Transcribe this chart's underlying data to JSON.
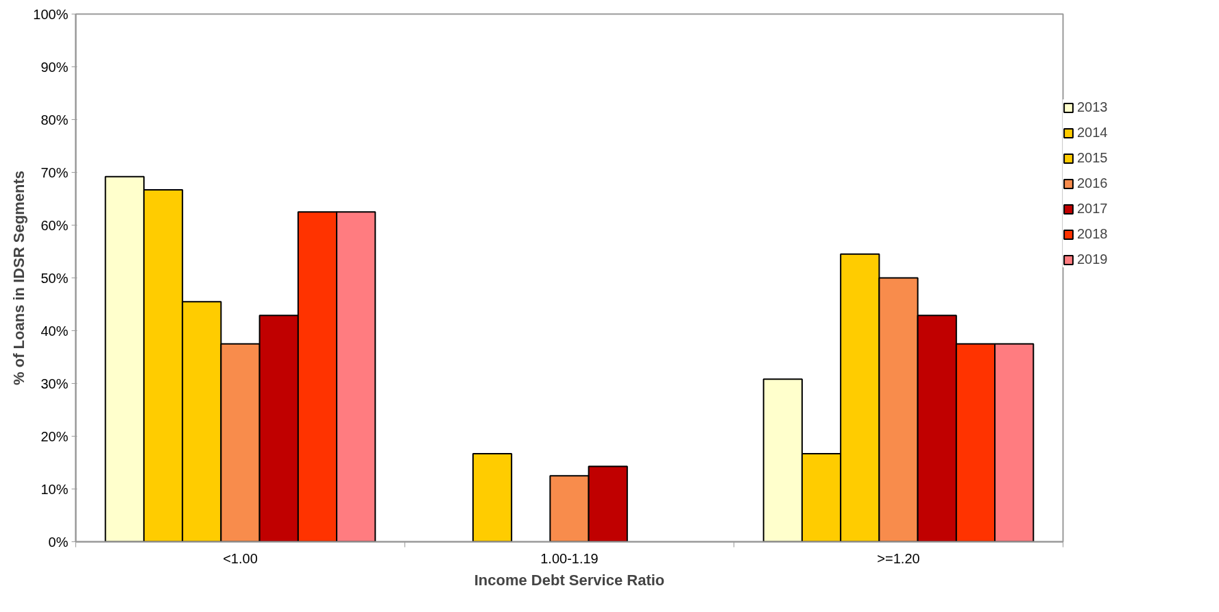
{
  "chart_data": {
    "type": "bar",
    "xlabel": "Income Debt Service Ratio",
    "ylabel": "% of Loans in IDSR Segments",
    "categories": [
      "<1.00",
      "1.00-1.19",
      ">=1.20"
    ],
    "series": [
      {
        "name": "2013",
        "color": "#ffffcc",
        "values": [
          69.2,
          null,
          30.8
        ]
      },
      {
        "name": "2014",
        "color": "#ffcc00",
        "values": [
          66.7,
          16.7,
          16.7
        ]
      },
      {
        "name": "2015",
        "color": "#ffcc00",
        "values": [
          45.5,
          null,
          54.5
        ]
      },
      {
        "name": "2016",
        "color": "#f88c4c",
        "values": [
          37.5,
          12.5,
          50.0
        ]
      },
      {
        "name": "2017",
        "color": "#c00000",
        "values": [
          42.9,
          14.3,
          42.9
        ]
      },
      {
        "name": "2018",
        "color": "#ff3300",
        "values": [
          62.5,
          null,
          37.5
        ]
      },
      {
        "name": "2019",
        "color": "#ff7c80",
        "values": [
          62.5,
          null,
          37.5
        ]
      }
    ],
    "ylim": [
      0,
      100
    ],
    "yticks": [
      {
        "value": 0,
        "label": "0%"
      },
      {
        "value": 10,
        "label": "10%"
      },
      {
        "value": 20,
        "label": "20%"
      },
      {
        "value": 30,
        "label": "30%"
      },
      {
        "value": 40,
        "label": "40%"
      },
      {
        "value": 50,
        "label": "50%"
      },
      {
        "value": 60,
        "label": "60%"
      },
      {
        "value": 70,
        "label": "70%"
      },
      {
        "value": 80,
        "label": "80%"
      },
      {
        "value": 90,
        "label": "90%"
      },
      {
        "value": 100,
        "label": "100%"
      }
    ],
    "grid": false,
    "legend": "right"
  }
}
